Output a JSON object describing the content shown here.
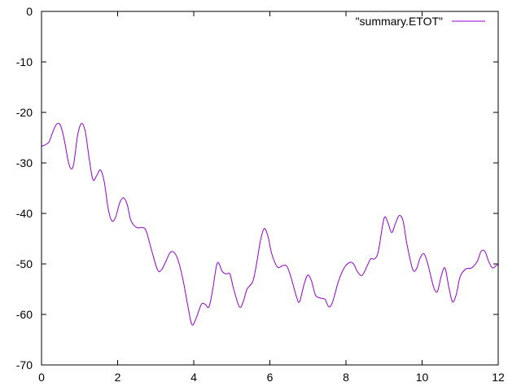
{
  "chart_data": {
    "type": "line",
    "title": "",
    "xlabel": "",
    "ylabel": "",
    "xlim": [
      0,
      12
    ],
    "ylim": [
      -70,
      0
    ],
    "x_ticks": [
      "0",
      "2",
      "4",
      "6",
      "8",
      "10",
      "12"
    ],
    "y_ticks": [
      "0",
      "-10",
      "-20",
      "-30",
      "-40",
      "-50",
      "-60",
      "-70"
    ],
    "grid": false,
    "legend_position": "top-right",
    "series": [
      {
        "name": "\"summary.ETOT\"",
        "color": "#9400d3",
        "points": [
          [
            0.0,
            -26.7
          ],
          [
            0.1,
            -26.4
          ],
          [
            0.2,
            -25.8
          ],
          [
            0.3,
            -23.8
          ],
          [
            0.4,
            -22.3
          ],
          [
            0.5,
            -22.6
          ],
          [
            0.6,
            -25.5
          ],
          [
            0.7,
            -29.6
          ],
          [
            0.78,
            -31.2
          ],
          [
            0.85,
            -30.0
          ],
          [
            0.95,
            -24.5
          ],
          [
            1.05,
            -22.2
          ],
          [
            1.15,
            -23.8
          ],
          [
            1.25,
            -29.0
          ],
          [
            1.35,
            -33.3
          ],
          [
            1.45,
            -32.5
          ],
          [
            1.55,
            -31.4
          ],
          [
            1.65,
            -33.8
          ],
          [
            1.75,
            -39.0
          ],
          [
            1.85,
            -41.5
          ],
          [
            1.95,
            -40.7
          ],
          [
            2.05,
            -38.0
          ],
          [
            2.15,
            -36.9
          ],
          [
            2.25,
            -38.2
          ],
          [
            2.35,
            -41.4
          ],
          [
            2.5,
            -42.8
          ],
          [
            2.65,
            -42.8
          ],
          [
            2.75,
            -43.5
          ],
          [
            2.9,
            -47.5
          ],
          [
            3.05,
            -51.2
          ],
          [
            3.15,
            -51.2
          ],
          [
            3.25,
            -49.8
          ],
          [
            3.4,
            -47.6
          ],
          [
            3.55,
            -48.5
          ],
          [
            3.7,
            -52.5
          ],
          [
            3.85,
            -58.5
          ],
          [
            3.95,
            -62.0
          ],
          [
            4.05,
            -61.0
          ],
          [
            4.2,
            -58.0
          ],
          [
            4.3,
            -58.0
          ],
          [
            4.4,
            -58.5
          ],
          [
            4.5,
            -55.0
          ],
          [
            4.62,
            -49.8
          ],
          [
            4.75,
            -51.5
          ],
          [
            4.85,
            -52.0
          ],
          [
            4.95,
            -52.0
          ],
          [
            5.05,
            -55.0
          ],
          [
            5.2,
            -58.5
          ],
          [
            5.3,
            -57.5
          ],
          [
            5.4,
            -55.0
          ],
          [
            5.55,
            -53.5
          ],
          [
            5.65,
            -50.0
          ],
          [
            5.75,
            -45.5
          ],
          [
            5.85,
            -43.0
          ],
          [
            5.95,
            -44.5
          ],
          [
            6.05,
            -48.0
          ],
          [
            6.2,
            -50.6
          ],
          [
            6.35,
            -50.3
          ],
          [
            6.45,
            -50.5
          ],
          [
            6.55,
            -52.5
          ],
          [
            6.7,
            -56.5
          ],
          [
            6.78,
            -57.5
          ],
          [
            6.9,
            -54.0
          ],
          [
            7.0,
            -52.2
          ],
          [
            7.1,
            -53.5
          ],
          [
            7.2,
            -56.2
          ],
          [
            7.35,
            -56.8
          ],
          [
            7.45,
            -57.0
          ],
          [
            7.55,
            -58.5
          ],
          [
            7.65,
            -57.5
          ],
          [
            7.8,
            -53.5
          ],
          [
            7.95,
            -50.8
          ],
          [
            8.1,
            -49.7
          ],
          [
            8.2,
            -50.0
          ],
          [
            8.3,
            -51.5
          ],
          [
            8.42,
            -52.3
          ],
          [
            8.55,
            -50.5
          ],
          [
            8.65,
            -49.0
          ],
          [
            8.75,
            -49.0
          ],
          [
            8.85,
            -47.5
          ],
          [
            9.0,
            -41.0
          ],
          [
            9.1,
            -41.8
          ],
          [
            9.2,
            -43.8
          ],
          [
            9.3,
            -42.0
          ],
          [
            9.4,
            -40.4
          ],
          [
            9.5,
            -41.5
          ],
          [
            9.6,
            -46.0
          ],
          [
            9.75,
            -51.0
          ],
          [
            9.85,
            -51.0
          ],
          [
            9.95,
            -48.8
          ],
          [
            10.05,
            -48.0
          ],
          [
            10.15,
            -50.0
          ],
          [
            10.3,
            -54.5
          ],
          [
            10.4,
            -55.5
          ],
          [
            10.5,
            -52.5
          ],
          [
            10.6,
            -50.8
          ],
          [
            10.7,
            -54.5
          ],
          [
            10.8,
            -57.5
          ],
          [
            10.9,
            -56.0
          ],
          [
            11.0,
            -52.5
          ],
          [
            11.15,
            -51.0
          ],
          [
            11.3,
            -50.8
          ],
          [
            11.45,
            -49.5
          ],
          [
            11.55,
            -47.5
          ],
          [
            11.65,
            -47.5
          ],
          [
            11.75,
            -49.5
          ],
          [
            11.85,
            -50.8
          ],
          [
            11.95,
            -50.3
          ],
          [
            12.0,
            -50.2
          ]
        ]
      }
    ]
  }
}
